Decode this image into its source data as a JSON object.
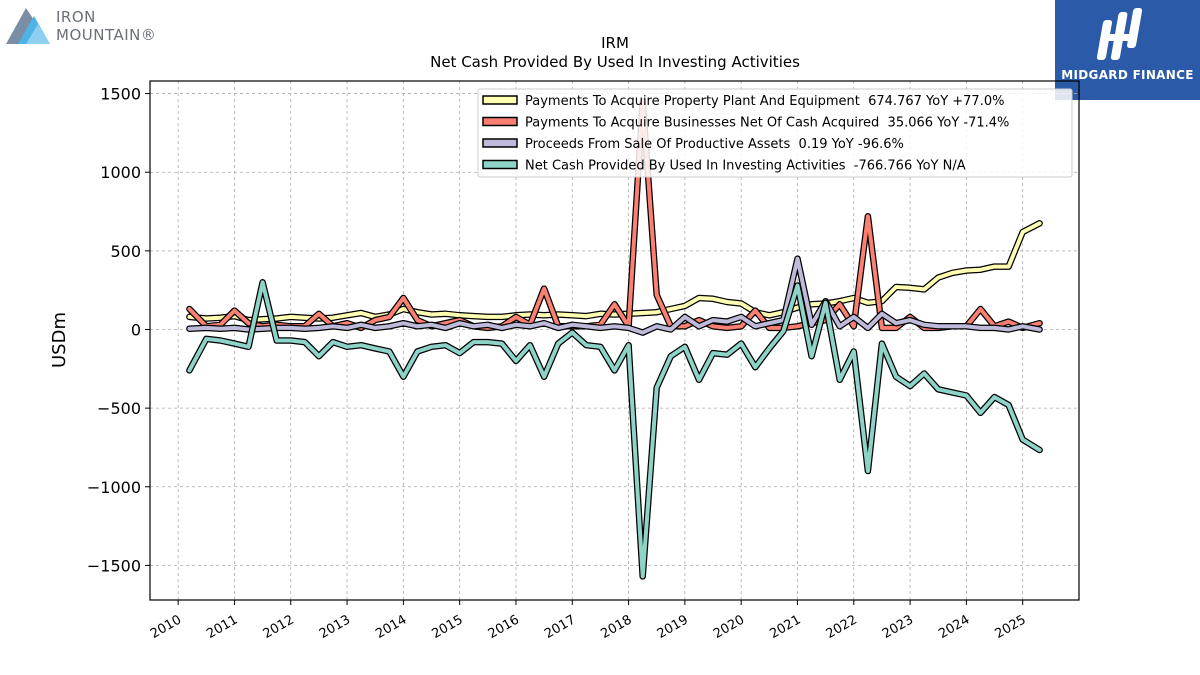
{
  "branding": {
    "company_logo_line1": "IRON",
    "company_logo_line2": "MOUNTAIN®",
    "publisher": "MIDGARD FINANCE",
    "badge_color": "#2b5ba8"
  },
  "chart_data": {
    "type": "line",
    "title": "IRM",
    "subtitle": "Net Cash Provided By Used In Investing Activities",
    "xlabel": "",
    "ylabel": "USDm",
    "xlim": [
      2009.5,
      2026.0
    ],
    "ylim": [
      -1720,
      1580
    ],
    "x_ticks": [
      2010,
      2011,
      2012,
      2013,
      2014,
      2015,
      2016,
      2017,
      2018,
      2019,
      2020,
      2021,
      2022,
      2023,
      2024,
      2025
    ],
    "y_ticks": [
      -1500,
      -1000,
      -500,
      0,
      500,
      1000,
      1500
    ],
    "y_tick_labels": [
      "−1500",
      "−1000",
      "−500",
      "0",
      "500",
      "1000",
      "1500"
    ],
    "grid": true,
    "legend_position": "top-right",
    "x": [
      2010.2,
      2010.5,
      2010.75,
      2011.0,
      2011.25,
      2011.5,
      2011.75,
      2012.0,
      2012.25,
      2012.5,
      2012.75,
      2013.0,
      2013.25,
      2013.5,
      2013.75,
      2014.0,
      2014.25,
      2014.5,
      2014.75,
      2015.0,
      2015.25,
      2015.5,
      2015.75,
      2016.0,
      2016.25,
      2016.5,
      2016.75,
      2017.0,
      2017.25,
      2017.5,
      2017.75,
      2018.0,
      2018.25,
      2018.5,
      2018.75,
      2019.0,
      2019.25,
      2019.5,
      2019.75,
      2020.0,
      2020.25,
      2020.5,
      2020.75,
      2021.0,
      2021.25,
      2021.5,
      2021.75,
      2022.0,
      2022.25,
      2022.5,
      2022.75,
      2023.0,
      2023.25,
      2023.5,
      2023.75,
      2024.0,
      2024.25,
      2024.5,
      2024.75,
      2025.0,
      2025.3
    ],
    "series": [
      {
        "name": "Payments To Acquire Property Plant And Equipment",
        "legend_value": "674.767",
        "legend_yoy": "YoY +77.0%",
        "color": "#ffffb3",
        "values": [
          80,
          70,
          75,
          85,
          60,
          65,
          70,
          80,
          75,
          70,
          75,
          90,
          105,
          80,
          95,
          130,
          110,
          95,
          100,
          90,
          85,
          80,
          80,
          90,
          95,
          90,
          95,
          90,
          85,
          100,
          95,
          100,
          105,
          110,
          130,
          150,
          200,
          195,
          175,
          165,
          110,
          90,
          110,
          140,
          160,
          165,
          180,
          200,
          170,
          180,
          270,
          265,
          255,
          330,
          360,
          375,
          380,
          400,
          400,
          620,
          675
        ]
      },
      {
        "name": "Payments To Acquire Businesses Net Of Cash Acquired",
        "legend_value": "35.066",
        "legend_yoy": "YoY -71.4%",
        "color": "#fb8072",
        "values": [
          130,
          20,
          30,
          120,
          40,
          20,
          30,
          20,
          20,
          100,
          20,
          40,
          10,
          60,
          80,
          200,
          60,
          20,
          40,
          60,
          20,
          10,
          20,
          80,
          30,
          260,
          20,
          20,
          20,
          30,
          160,
          20,
          1450,
          220,
          20,
          20,
          60,
          20,
          10,
          20,
          120,
          10,
          10,
          20,
          40,
          60,
          160,
          20,
          720,
          10,
          10,
          80,
          10,
          10,
          20,
          20,
          130,
          20,
          50,
          10,
          40
        ]
      },
      {
        "name": "Proceeds From Sale Of Productive Assets",
        "legend_value": "0.19",
        "legend_yoy": "YoY -96.6%",
        "color": "#bebada",
        "values": [
          5,
          10,
          5,
          10,
          0,
          5,
          10,
          10,
          5,
          10,
          20,
          10,
          30,
          10,
          20,
          40,
          20,
          30,
          10,
          40,
          20,
          30,
          10,
          30,
          20,
          40,
          10,
          30,
          20,
          10,
          20,
          10,
          -20,
          20,
          0,
          80,
          20,
          60,
          50,
          80,
          20,
          40,
          60,
          450,
          30,
          180,
          20,
          80,
          10,
          100,
          40,
          60,
          30,
          20,
          20,
          20,
          10,
          10,
          0,
          20,
          0
        ]
      },
      {
        "name": "Net Cash Provided By Used In Investing Activities",
        "legend_value": "-766.766",
        "legend_yoy": "YoY N/A",
        "color": "#8dd3c7",
        "values": [
          -260,
          -60,
          -70,
          -90,
          -110,
          300,
          -70,
          -70,
          -80,
          -170,
          -80,
          -110,
          -100,
          -120,
          -140,
          -300,
          -140,
          -110,
          -100,
          -150,
          -80,
          -80,
          -90,
          -200,
          -100,
          -300,
          -90,
          -20,
          -100,
          -110,
          -260,
          -100,
          -1570,
          -370,
          -170,
          -110,
          -320,
          -150,
          -160,
          -90,
          -240,
          -120,
          -10,
          280,
          -170,
          170,
          -320,
          -140,
          -900,
          -90,
          -300,
          -360,
          -280,
          -380,
          -400,
          -420,
          -530,
          -430,
          -480,
          -700,
          -766
        ]
      }
    ]
  }
}
